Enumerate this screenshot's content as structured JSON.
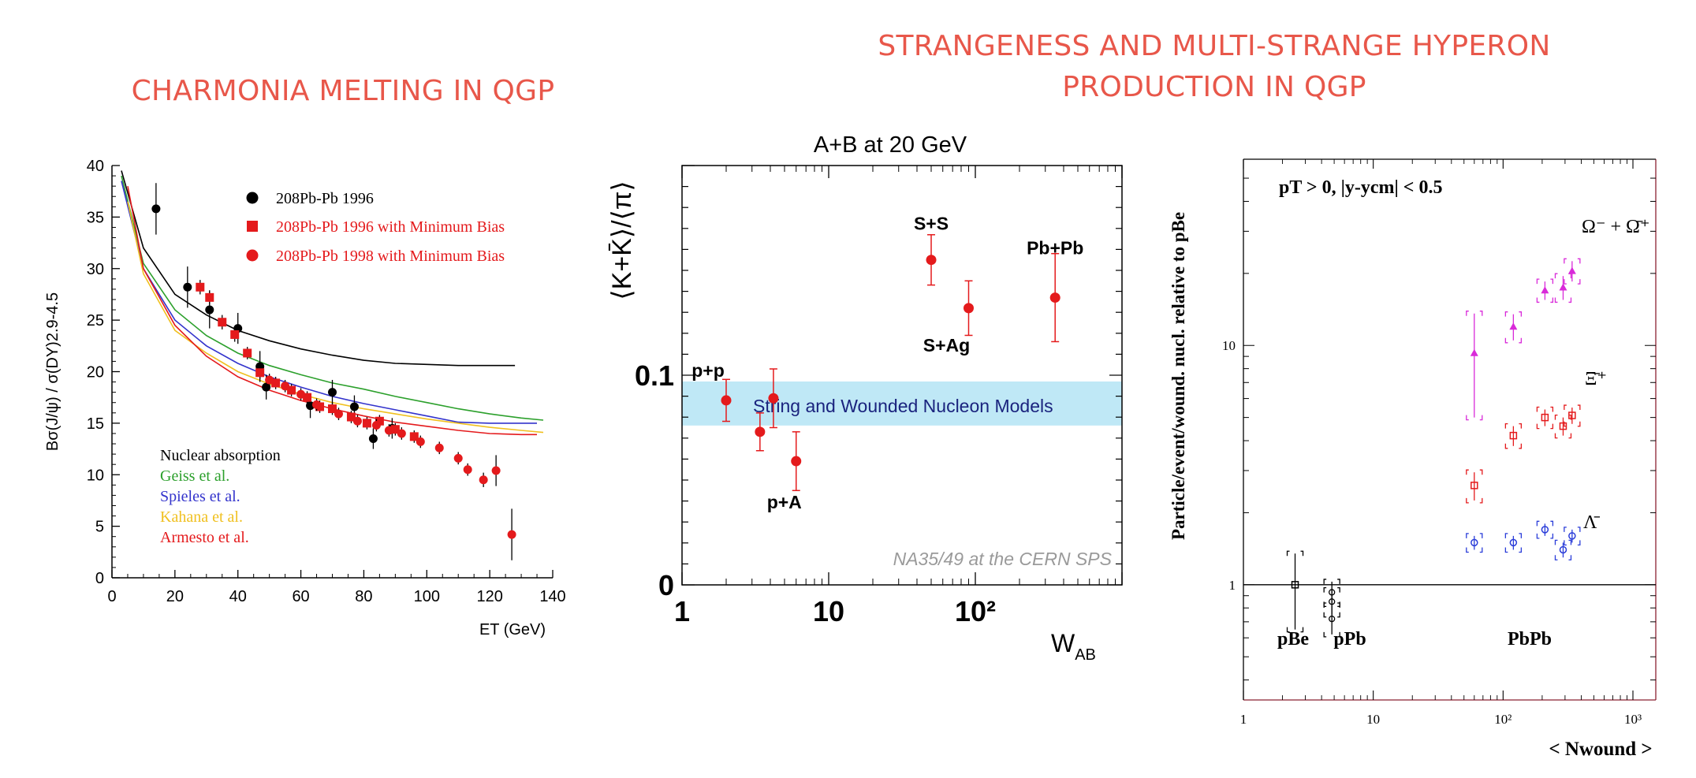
{
  "headings": {
    "left": "CHARMONIA MELTING IN QGP",
    "right_line1": "STRANGENESS AND MULTI-STRANGE HYPERON",
    "right_line2": "PRODUCTION IN QGP"
  },
  "colors": {
    "heading": "#e8574a",
    "marker_red": "#e41a1c",
    "marker_black": "#000000",
    "band": "#bfe8f6",
    "magenta": "#d92ad9",
    "blue": "#2a3dd9"
  },
  "chart_data": [
    {
      "type": "scatter",
      "title": "",
      "ylabel": "Bσ(J/ψ) / σ(DY)2.9-4.5",
      "xlabel": "ET (GeV)",
      "xlim": [
        0,
        140
      ],
      "ylim": [
        0,
        40
      ],
      "xticks": [
        "0",
        "20",
        "40",
        "60",
        "80",
        "100",
        "120",
        "140"
      ],
      "yticks": [
        "0",
        "5",
        "10",
        "15",
        "20",
        "25",
        "30",
        "35",
        "40"
      ],
      "legend": [
        {
          "label": "208Pb-Pb 1996",
          "marker": "circle",
          "color": "#000000"
        },
        {
          "label": "208Pb-Pb 1996 with Minimum Bias",
          "marker": "square",
          "color": "#e41a1c"
        },
        {
          "label": "208Pb-Pb 1998 with Minimum Bias",
          "marker": "circle",
          "color": "#e41a1c"
        }
      ],
      "model_legend": [
        {
          "label": "Nuclear absorption",
          "color": "#000000"
        },
        {
          "label": "Geiss et al.",
          "color": "#2ca02c"
        },
        {
          "label": "Spieles et al.",
          "color": "#3333cc"
        },
        {
          "label": "Kahana et al.",
          "color": "#f0c020"
        },
        {
          "label": "Armesto et al.",
          "color": "#e41a1c"
        }
      ],
      "series": [
        {
          "name": "208Pb-Pb 1996",
          "marker": "circle",
          "color": "#000000",
          "points": [
            [
              14,
              35.8,
              2.5
            ],
            [
              24,
              28.2,
              2.0
            ],
            [
              31,
              26.0,
              1.8
            ],
            [
              40,
              24.2,
              1.5
            ],
            [
              47,
              20.5,
              1.5
            ],
            [
              49,
              18.5,
              1.2
            ],
            [
              63,
              16.7,
              1.2
            ],
            [
              70,
              18.0,
              1.2
            ],
            [
              77,
              16.6,
              1.1
            ],
            [
              83,
              13.5,
              1.0
            ],
            [
              89,
              14.5,
              1.0
            ]
          ]
        },
        {
          "name": "208Pb-Pb 1996 with Minimum Bias",
          "marker": "square",
          "color": "#e41a1c",
          "points": [
            [
              28,
              28.2,
              0.7
            ],
            [
              31,
              27.2,
              0.7
            ],
            [
              35,
              24.8,
              0.7
            ],
            [
              39,
              23.6,
              0.7
            ],
            [
              43,
              21.8,
              0.6
            ],
            [
              47,
              19.9,
              0.6
            ],
            [
              52,
              18.9,
              0.6
            ],
            [
              57,
              18.2,
              0.6
            ],
            [
              62,
              17.5,
              0.6
            ],
            [
              66,
              16.6,
              0.6
            ],
            [
              70,
              16.4,
              0.6
            ],
            [
              76,
              15.6,
              0.6
            ],
            [
              81,
              15.0,
              0.6
            ],
            [
              85,
              15.2,
              0.6
            ],
            [
              90,
              14.4,
              0.6
            ],
            [
              96,
              13.7,
              0.6
            ]
          ]
        },
        {
          "name": "208Pb-Pb 1998 with Minimum Bias",
          "marker": "circle",
          "color": "#e41a1c",
          "points": [
            [
              50,
              19.2,
              0.6
            ],
            [
              55,
              18.6,
              0.6
            ],
            [
              60,
              17.8,
              0.6
            ],
            [
              65,
              16.8,
              0.6
            ],
            [
              72,
              15.9,
              0.6
            ],
            [
              78,
              15.2,
              0.6
            ],
            [
              84,
              14.8,
              0.6
            ],
            [
              88,
              14.3,
              0.6
            ],
            [
              92,
              14.0,
              0.6
            ],
            [
              98,
              13.2,
              0.6
            ],
            [
              104,
              12.6,
              0.6
            ],
            [
              110,
              11.6,
              0.6
            ],
            [
              113,
              10.5,
              0.6
            ],
            [
              118,
              9.5,
              0.7
            ],
            [
              122,
              10.4,
              1.5
            ],
            [
              127,
              4.2,
              2.5
            ]
          ]
        }
      ],
      "curves": [
        {
          "name": "Nuclear absorption",
          "color": "#000000",
          "x": [
            3,
            10,
            20,
            30,
            40,
            50,
            60,
            70,
            80,
            90,
            100,
            110,
            120,
            128
          ],
          "y": [
            39.5,
            32,
            27.5,
            25.5,
            24.0,
            23.0,
            22.2,
            21.6,
            21.1,
            20.8,
            20.7,
            20.6,
            20.6,
            20.6
          ]
        },
        {
          "name": "Geiss et al.",
          "color": "#2ca02c",
          "x": [
            3,
            10,
            20,
            30,
            40,
            50,
            60,
            70,
            80,
            90,
            100,
            110,
            120,
            130,
            137
          ],
          "y": [
            39,
            30.5,
            26.0,
            23.5,
            21.8,
            20.6,
            19.7,
            18.9,
            18.3,
            17.6,
            17.0,
            16.4,
            15.9,
            15.5,
            15.3
          ]
        },
        {
          "name": "Spieles et al.",
          "color": "#3333cc",
          "x": [
            3,
            10,
            20,
            30,
            40,
            50,
            60,
            70,
            80,
            90,
            100,
            110,
            120,
            130,
            135
          ],
          "y": [
            38.5,
            30.0,
            25.0,
            22.5,
            20.8,
            19.5,
            18.5,
            17.6,
            16.9,
            16.3,
            15.7,
            15.1,
            15.0,
            15.0,
            15.0
          ]
        },
        {
          "name": "Kahana et al.",
          "color": "#f0c020",
          "x": [
            5,
            10,
            20,
            30,
            40,
            50,
            60,
            70,
            80,
            90,
            100,
            110,
            120,
            130,
            137
          ],
          "y": [
            36.5,
            29.5,
            24.0,
            21.8,
            20.0,
            18.8,
            17.8,
            17.0,
            16.4,
            15.9,
            15.4,
            15.0,
            14.6,
            14.3,
            14.1
          ]
        },
        {
          "name": "Armesto et al.",
          "color": "#e41a1c",
          "x": [
            5,
            10,
            20,
            30,
            40,
            50,
            60,
            70,
            80,
            90,
            100,
            110,
            120,
            130,
            135
          ],
          "y": [
            38.0,
            30.0,
            24.5,
            21.5,
            19.5,
            18.2,
            17.2,
            16.4,
            15.7,
            15.1,
            14.7,
            14.3,
            14.0,
            13.9,
            13.9
          ]
        }
      ]
    },
    {
      "type": "scatter",
      "title": "A+B at 20 GeV",
      "ylabel": "⟨K+K̄⟩/⟨π⟩",
      "xlabel": "W",
      "xlabel_sub": "AB",
      "xscale": "log",
      "xlim": [
        1,
        1000
      ],
      "ylim": [
        0,
        0.2
      ],
      "xticks": [
        "1",
        "10",
        "10²"
      ],
      "yticks": [
        "0",
        "0.1"
      ],
      "band": {
        "label": "String and Wounded Nucleon Models",
        "y": [
          0.076,
          0.097
        ]
      },
      "watermark": "NA35/49 at the CERN SPS",
      "points": [
        {
          "label": "p+p",
          "x": 2.0,
          "y": 0.088,
          "err": 0.01
        },
        {
          "label": "",
          "x": 3.4,
          "y": 0.073,
          "err": 0.009
        },
        {
          "label": "",
          "x": 4.2,
          "y": 0.089,
          "err": 0.014
        },
        {
          "label": "p+A",
          "x": 6.0,
          "y": 0.059,
          "err": 0.014
        },
        {
          "label": "S+S",
          "x": 50,
          "y": 0.155,
          "err": 0.012
        },
        {
          "label": "S+Ag",
          "x": 90,
          "y": 0.132,
          "err": 0.013
        },
        {
          "label": "Pb+Pb",
          "x": 350,
          "y": 0.137,
          "err": 0.021
        }
      ]
    },
    {
      "type": "scatter",
      "title": "",
      "ylabel": "Particle/event/wound. nucl. relative to pBe",
      "xlabel": "< Nwound >",
      "xscale": "log",
      "yscale": "log",
      "xlim": [
        1,
        1500
      ],
      "ylim": [
        0.33,
        60
      ],
      "xticks": [
        "1",
        "10",
        "10²",
        "10³"
      ],
      "yticks": [
        "1",
        "10"
      ],
      "annotation": "pT > 0,  |y-ycm| < 0.5",
      "system_labels": [
        "pBe",
        "pPb",
        "PbPb"
      ],
      "series": [
        {
          "name": "Ω⁻ + Ω̄⁺",
          "color": "#d92ad9",
          "marker": "triangle",
          "x": [
            60,
            120,
            210,
            290,
            340
          ],
          "y": [
            9.3,
            12.0,
            17.0,
            17.5,
            20.5
          ],
          "err": [
            4.3,
            1.5,
            1.5,
            2.0,
            2.0
          ]
        },
        {
          "name": "Ξ̄⁺",
          "color": "#e41a1c",
          "marker": "square",
          "x": [
            60,
            120,
            210,
            290,
            340
          ],
          "y": [
            2.6,
            4.2,
            5.0,
            4.6,
            5.1
          ],
          "err": [
            0.35,
            0.4,
            0.4,
            0.4,
            0.4
          ]
        },
        {
          "name": "Λ̄",
          "color": "#2a3dd9",
          "marker": "circle",
          "x": [
            60,
            120,
            210,
            290,
            340
          ],
          "y": [
            1.5,
            1.5,
            1.7,
            1.4,
            1.6
          ],
          "err": [
            0.1,
            0.1,
            0.1,
            0.1,
            0.1
          ]
        },
        {
          "name": "pBe",
          "color": "#000000",
          "marker": "square",
          "x": [
            2.5
          ],
          "y": [
            1.0
          ],
          "err": [
            0.35
          ]
        },
        {
          "name": "pPb",
          "color": "#000000",
          "marker": "open",
          "x": [
            4.8,
            4.8,
            4.8
          ],
          "y": [
            0.93,
            0.85,
            0.72
          ],
          "err": [
            0.1,
            0.1,
            0.1
          ]
        }
      ]
    }
  ]
}
